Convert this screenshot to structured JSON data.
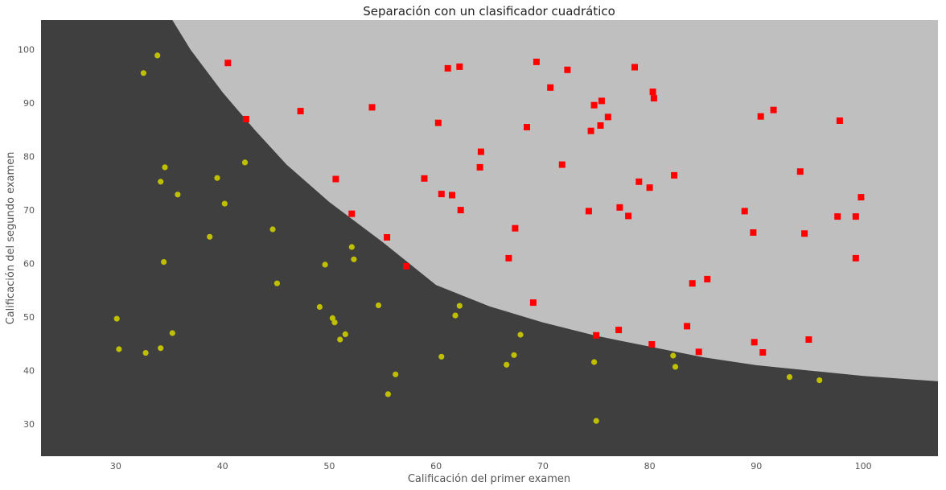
{
  "chart_data": {
    "type": "scatter",
    "title": "Separación con un clasificador cuadrático",
    "xlabel": "Calificación del primer examen",
    "ylabel": "Calificación del segundo examen",
    "xlim": [
      23,
      107
    ],
    "ylim": [
      24,
      105.5
    ],
    "xticks": [
      30,
      40,
      50,
      60,
      70,
      80,
      90,
      100
    ],
    "yticks": [
      30,
      40,
      50,
      60,
      70,
      80,
      90,
      100
    ],
    "grid": false,
    "legend": "none",
    "colors": {
      "region_class0": "#3f3f3f",
      "region_class1": "#bfbfbf",
      "class0_marker": "#bfbf00",
      "class1_marker": "#ff0000"
    },
    "decision_boundary": [
      [
        35.3,
        105.5
      ],
      [
        37,
        100
      ],
      [
        40,
        92
      ],
      [
        43,
        85
      ],
      [
        46,
        78.5
      ],
      [
        50,
        71.5
      ],
      [
        55,
        64
      ],
      [
        60,
        56
      ],
      [
        65,
        52
      ],
      [
        70,
        49
      ],
      [
        75,
        46.5
      ],
      [
        80,
        44.5
      ],
      [
        85,
        42.5
      ],
      [
        90,
        41
      ],
      [
        95,
        40
      ],
      [
        100,
        39
      ],
      [
        107,
        38
      ]
    ],
    "series": [
      {
        "marker": "square",
        "points": [
          [
            40.5,
            97.5
          ],
          [
            42.2,
            87.0
          ],
          [
            47.3,
            88.5
          ],
          [
            50.6,
            75.8
          ],
          [
            52.1,
            69.3
          ],
          [
            54.0,
            89.2
          ],
          [
            55.4,
            64.9
          ],
          [
            57.2,
            59.5
          ],
          [
            58.9,
            75.9
          ],
          [
            60.2,
            86.3
          ],
          [
            60.5,
            73.0
          ],
          [
            61.1,
            96.5
          ],
          [
            61.5,
            72.8
          ],
          [
            62.2,
            96.8
          ],
          [
            62.3,
            70.0
          ],
          [
            64.1,
            78.0
          ],
          [
            64.2,
            80.9
          ],
          [
            66.8,
            61.0
          ],
          [
            67.4,
            66.6
          ],
          [
            68.5,
            85.5
          ],
          [
            69.1,
            52.7
          ],
          [
            69.4,
            97.7
          ],
          [
            70.7,
            92.9
          ],
          [
            71.8,
            78.5
          ],
          [
            72.3,
            96.2
          ],
          [
            74.3,
            69.8
          ],
          [
            74.5,
            84.8
          ],
          [
            74.8,
            89.6
          ],
          [
            75.0,
            46.6
          ],
          [
            75.4,
            85.8
          ],
          [
            75.5,
            90.4
          ],
          [
            76.1,
            87.4
          ],
          [
            77.1,
            47.6
          ],
          [
            77.2,
            70.5
          ],
          [
            78.0,
            68.9
          ],
          [
            78.6,
            96.7
          ],
          [
            79.0,
            75.3
          ],
          [
            80.0,
            74.2
          ],
          [
            80.2,
            44.9
          ],
          [
            80.3,
            92.1
          ],
          [
            80.4,
            90.9
          ],
          [
            82.3,
            76.5
          ],
          [
            83.5,
            48.3
          ],
          [
            84.0,
            56.3
          ],
          [
            84.6,
            43.5
          ],
          [
            85.4,
            57.1
          ],
          [
            88.9,
            69.8
          ],
          [
            89.7,
            65.8
          ],
          [
            89.8,
            45.3
          ],
          [
            90.4,
            87.5
          ],
          [
            90.6,
            43.4
          ],
          [
            91.6,
            88.7
          ],
          [
            94.1,
            77.2
          ],
          [
            94.5,
            65.6
          ],
          [
            94.9,
            45.8
          ],
          [
            97.6,
            68.8
          ],
          [
            97.8,
            86.7
          ],
          [
            99.3,
            68.8
          ],
          [
            99.3,
            61.0
          ],
          [
            99.8,
            72.4
          ]
        ]
      },
      {
        "marker": "circle",
        "points": [
          [
            30.1,
            49.7
          ],
          [
            30.3,
            44.0
          ],
          [
            32.6,
            95.6
          ],
          [
            32.8,
            43.3
          ],
          [
            33.9,
            98.9
          ],
          [
            34.2,
            75.3
          ],
          [
            34.2,
            44.2
          ],
          [
            34.5,
            60.3
          ],
          [
            34.6,
            78.0
          ],
          [
            35.3,
            47.0
          ],
          [
            35.8,
            72.9
          ],
          [
            38.8,
            65.0
          ],
          [
            39.5,
            76.0
          ],
          [
            40.2,
            71.2
          ],
          [
            42.1,
            78.9
          ],
          [
            44.7,
            66.4
          ],
          [
            45.1,
            56.3
          ],
          [
            49.1,
            51.9
          ],
          [
            49.6,
            59.8
          ],
          [
            50.3,
            49.8
          ],
          [
            50.5,
            49.0
          ],
          [
            51.0,
            45.8
          ],
          [
            51.5,
            46.8
          ],
          [
            52.1,
            63.1
          ],
          [
            52.3,
            60.8
          ],
          [
            54.6,
            52.2
          ],
          [
            55.5,
            35.6
          ],
          [
            56.2,
            39.3
          ],
          [
            60.5,
            42.6
          ],
          [
            61.8,
            50.3
          ],
          [
            62.2,
            52.1
          ],
          [
            66.6,
            41.1
          ],
          [
            67.3,
            42.9
          ],
          [
            67.9,
            46.7
          ],
          [
            74.8,
            41.6
          ],
          [
            75.0,
            30.6
          ],
          [
            82.2,
            42.8
          ],
          [
            82.4,
            40.7
          ],
          [
            93.1,
            38.8
          ],
          [
            95.9,
            38.2
          ]
        ]
      }
    ]
  }
}
